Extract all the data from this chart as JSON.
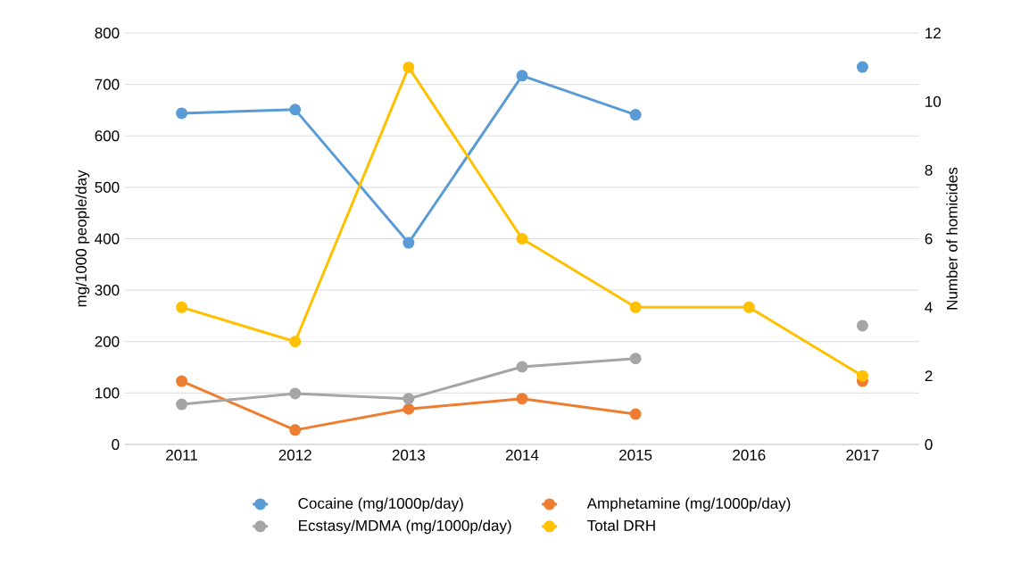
{
  "chart_data": {
    "type": "line",
    "categories": [
      "2011",
      "2012",
      "2013",
      "2014",
      "2015",
      "2016",
      "2017"
    ],
    "ylabel": "mg/1000 people/day",
    "y2label": "Number of homicides",
    "ylim": [
      0,
      800
    ],
    "yticks": [
      0,
      100,
      200,
      300,
      400,
      500,
      600,
      700,
      800
    ],
    "y2lim": [
      0,
      12
    ],
    "y2ticks": [
      0,
      2,
      4,
      6,
      8,
      10,
      12
    ],
    "grid": "y",
    "legend": "bottom",
    "marker": "circle",
    "line_style": "solid",
    "series": [
      {
        "name": "Cocaine (mg/1000p/day)",
        "color": "#5b9bd5",
        "values": [
          644,
          651,
          392,
          717,
          641,
          null,
          734
        ]
      },
      {
        "name": "Amphetamine (mg/1000p/day)",
        "color": "#ed7d31",
        "values": [
          123,
          28,
          69,
          89,
          59,
          null,
          123
        ]
      },
      {
        "name": "Ecstasy/MDMA (mg/1000p/day)",
        "color": "#a5a5a5",
        "values": [
          78,
          99,
          89,
          151,
          167,
          null,
          231
        ]
      },
      {
        "name": "Total DRH",
        "color": "#ffc000",
        "axis": "y2",
        "values": [
          4,
          3,
          11,
          6,
          4,
          4,
          2
        ]
      }
    ]
  }
}
